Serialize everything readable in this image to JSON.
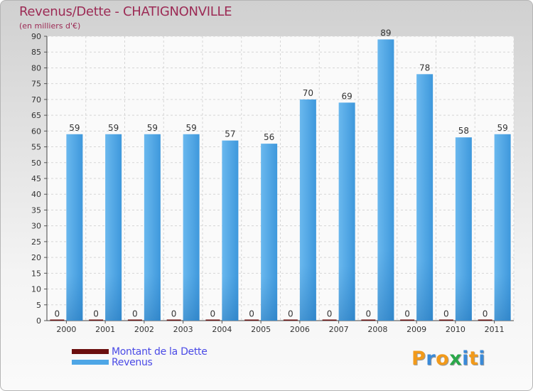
{
  "title": "Revenus/Dette - CHATIGNONVILLE",
  "subtitle": "(en milliers d'€)",
  "chart_data": {
    "type": "bar",
    "categories": [
      "2000",
      "2001",
      "2002",
      "2003",
      "2004",
      "2005",
      "2006",
      "2007",
      "2008",
      "2009",
      "2010",
      "2011"
    ],
    "series": [
      {
        "name": "Montant de la Dette",
        "color": "#6b0f0f",
        "values": [
          0,
          0,
          0,
          0,
          0,
          0,
          0,
          0,
          0,
          0,
          0,
          0
        ]
      },
      {
        "name": "Revenus",
        "color": "#4ea6e6",
        "values": [
          59,
          59,
          59,
          59,
          57,
          56,
          70,
          69,
          89,
          78,
          58,
          59
        ]
      }
    ],
    "yticks": [
      0,
      5,
      10,
      15,
      20,
      25,
      30,
      35,
      40,
      45,
      50,
      55,
      60,
      65,
      70,
      75,
      80,
      85,
      90
    ],
    "ylim": [
      0,
      90
    ],
    "grid": true,
    "legend_position": "bottom-left"
  },
  "logo": {
    "letters": [
      "P",
      "r",
      "o",
      "x",
      "i",
      "t",
      "i"
    ],
    "colors": [
      "#f29a1a",
      "#3a8ad8",
      "#f29a1a",
      "#2aa84a",
      "#3a8ad8",
      "#f29a1a",
      "#3a8ad8"
    ]
  }
}
